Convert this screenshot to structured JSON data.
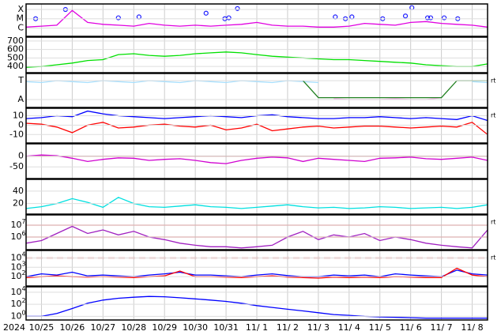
{
  "year": "2024",
  "x_axis": {
    "xlim": [
      -0.5,
      14.5
    ],
    "xticks": [
      {
        "value": 0,
        "label": "10/25"
      },
      {
        "value": 1,
        "label": "10/26"
      },
      {
        "value": 2,
        "label": "10/27"
      },
      {
        "value": 3,
        "label": "10/28"
      },
      {
        "value": 4,
        "label": "10/29"
      },
      {
        "value": 5,
        "label": "10/30"
      },
      {
        "value": 6,
        "label": "10/31"
      },
      {
        "value": 7,
        "label": "11/ 1"
      },
      {
        "value": 8,
        "label": "11/ 2"
      },
      {
        "value": 9,
        "label": "11/ 3"
      },
      {
        "value": 10,
        "label": "11/ 4"
      },
      {
        "value": 11,
        "label": "11/ 5"
      },
      {
        "value": 12,
        "label": "11/ 6"
      },
      {
        "value": 13,
        "label": "11/ 7"
      },
      {
        "value": 14,
        "label": "11/ 8"
      }
    ],
    "x": [
      -0.5,
      0,
      0.5,
      1,
      1.5,
      2,
      2.5,
      3,
      3.5,
      4,
      4.5,
      5,
      5.5,
      6,
      6.5,
      7,
      7.5,
      8,
      8.5,
      9,
      9.5,
      10,
      10.5,
      11,
      11.5,
      12,
      12.5,
      13,
      13.5,
      14,
      14.5
    ]
  },
  "chart_data": [
    {
      "type": "line",
      "ylim": [
        0.1,
        3.6
      ],
      "yticks": [
        {
          "value": 3,
          "label": "X"
        },
        {
          "value": 2,
          "label": "M"
        },
        {
          "value": 1,
          "label": "C"
        }
      ],
      "series": [
        {
          "color": "#e000e0",
          "values": [
            1.1,
            1.2,
            1.3,
            2.9,
            1.6,
            1.4,
            1.3,
            1.2,
            1.5,
            1.3,
            1.2,
            1.3,
            1.2,
            1.3,
            1.4,
            1.6,
            1.3,
            1.2,
            1.2,
            1.1,
            1.1,
            1.2,
            1.5,
            1.4,
            1.3,
            1.6,
            1.7,
            1.5,
            1.4,
            1.3,
            1.1
          ]
        },
        {
          "color": "#2020ff",
          "mode": "markers",
          "x": [
            -0.19,
            0.78,
            2.5,
            3.17,
            5.35,
            5.96,
            6.09,
            6.37,
            9.55,
            9.88,
            10.09,
            11.09,
            11.83,
            12.04,
            12.55,
            12.65,
            13.09,
            13.53
          ],
          "values": [
            2.0,
            3.0,
            2.1,
            2.2,
            2.6,
            2.0,
            2.1,
            3.1,
            2.2,
            2.0,
            2.2,
            2.0,
            2.3,
            3.2,
            2.1,
            2.1,
            2.1,
            2.0
          ]
        }
      ]
    },
    {
      "type": "line",
      "ylim": [
        327,
        745
      ],
      "yticks": [
        700,
        600,
        500,
        400
      ],
      "series": [
        {
          "color": "#00e000",
          "values": [
            390,
            400,
            420,
            440,
            470,
            480,
            540,
            550,
            530,
            520,
            530,
            550,
            560,
            570,
            560,
            540,
            520,
            510,
            500,
            490,
            480,
            480,
            470,
            460,
            450,
            440,
            420,
            410,
            400,
            400,
            430
          ]
        }
      ]
    },
    {
      "type": "line",
      "ylim": [
        -0.42,
        1.38
      ],
      "yticks": [
        {
          "value": 1,
          "label": "T"
        },
        {
          "value": 0,
          "label": "A"
        }
      ],
      "side_label": "rt",
      "series": [
        {
          "color": "#a8e0ff",
          "values": [
            0.95,
            0.9,
            1,
            0.95,
            0.9,
            1,
            0.95,
            0.9,
            1,
            0.95,
            0.9,
            1,
            0.95,
            0.9,
            1,
            0.95,
            0.9,
            1,
            0.95,
            0.9,
            null,
            null,
            null,
            null,
            null,
            null,
            null,
            null,
            null,
            0.95,
            0.9
          ]
        },
        {
          "color": "#ffb0f0",
          "values": [
            null,
            null,
            null,
            null,
            null,
            null,
            null,
            null,
            null,
            null,
            null,
            null,
            null,
            null,
            null,
            null,
            null,
            null,
            null,
            null,
            0.05,
            0,
            0,
            0,
            0.05,
            0,
            0,
            0.1,
            null,
            null,
            null
          ]
        },
        {
          "color": "#208020",
          "values": [
            null,
            null,
            null,
            null,
            null,
            null,
            null,
            null,
            null,
            null,
            null,
            null,
            null,
            null,
            null,
            null,
            null,
            null,
            1,
            0.1,
            0.1,
            0.1,
            0.1,
            0.1,
            0.1,
            0.1,
            0.1,
            0.1,
            1,
            1,
            1
          ]
        }
      ]
    },
    {
      "type": "line",
      "ylim": [
        -19,
        18
      ],
      "yticks": [
        10,
        0,
        -10
      ],
      "side_label": "rt",
      "series": [
        {
          "color": "#0000ff",
          "values": [
            7,
            8,
            10,
            9,
            15,
            12,
            10,
            9,
            8,
            7,
            8,
            9,
            10,
            9,
            8,
            10,
            11,
            9,
            8,
            7,
            7,
            8,
            8,
            9,
            8,
            7,
            8,
            7,
            6,
            10,
            5
          ]
        },
        {
          "color": "#ff0000",
          "values": [
            2,
            1,
            -2,
            -8,
            0,
            3,
            -3,
            -2,
            0,
            1,
            -1,
            -2,
            0,
            -5,
            -3,
            1,
            -6,
            -4,
            -2,
            -1,
            -3,
            -2,
            -1,
            -1,
            -2,
            -3,
            -2,
            -1,
            -2,
            3,
            -10
          ]
        }
      ]
    },
    {
      "type": "line",
      "ylim": [
        -104,
        57
      ],
      "yticks": [
        0,
        -50
      ],
      "reference_lines": [
        {
          "value": 0,
          "color": "#a00000"
        }
      ],
      "series": [
        {
          "color": "#d000d0",
          "values": [
            0,
            5,
            2,
            -10,
            -25,
            -15,
            -8,
            -10,
            -20,
            -15,
            -12,
            -20,
            -30,
            -35,
            -20,
            -10,
            -5,
            -8,
            -25,
            -10,
            -15,
            -20,
            -25,
            -10,
            -8,
            -5,
            -12,
            -15,
            -10,
            -5,
            -20
          ]
        }
      ]
    },
    {
      "type": "line",
      "ylim": [
        3,
        59
      ],
      "yticks": [
        40,
        20
      ],
      "series": [
        {
          "color": "#00e0e0",
          "values": [
            12,
            15,
            20,
            28,
            22,
            14,
            30,
            20,
            15,
            14,
            16,
            18,
            15,
            14,
            12,
            14,
            16,
            18,
            15,
            13,
            14,
            12,
            13,
            15,
            14,
            12,
            13,
            14,
            12,
            14,
            18
          ]
        }
      ]
    },
    {
      "type": "line",
      "log": true,
      "ylim": [
        85000,
        74000000
      ],
      "yticks": [
        {
          "value": 10000000,
          "label": "10",
          "exponent": "7"
        },
        {
          "value": 1000000,
          "label": "10",
          "exponent": "6"
        }
      ],
      "side_label": "rt",
      "reference_lines": [
        {
          "value": 10000000,
          "color": "#e00000"
        },
        {
          "value": 1000000,
          "color": "#e00000"
        }
      ],
      "series": [
        {
          "color": "#a020c0",
          "values": [
            300000,
            500000,
            2000000,
            8000000,
            2000000,
            4000000,
            1500000,
            3000000,
            1000000,
            600000,
            300000,
            200000,
            150000,
            150000,
            120000,
            150000,
            200000,
            1000000,
            3000000,
            600000,
            1500000,
            1000000,
            2000000,
            500000,
            1000000,
            600000,
            300000,
            200000,
            150000,
            120000,
            4000000
          ]
        }
      ]
    },
    {
      "type": "line",
      "log": true,
      "ylim": [
        10,
        63000
      ],
      "yticks": [
        {
          "value": 10000,
          "label": "10",
          "exponent": "4"
        },
        {
          "value": 1000,
          "label": "10",
          "exponent": "3"
        },
        {
          "value": 100,
          "label": "10",
          "exponent": "2"
        }
      ],
      "side_label": "rt",
      "reference_lines": [
        {
          "value": 10000,
          "color": "#e00000",
          "dash": true
        }
      ],
      "series": [
        {
          "color": "#0000ff",
          "values": [
            100,
            200,
            150,
            300,
            120,
            150,
            120,
            100,
            150,
            200,
            300,
            150,
            150,
            120,
            100,
            150,
            200,
            130,
            100,
            100,
            150,
            120,
            150,
            100,
            200,
            150,
            120,
            100,
            500,
            200,
            150
          ]
        },
        {
          "color": "#ff0000",
          "values": [
            80,
            100,
            120,
            100,
            90,
            100,
            90,
            80,
            100,
            120,
            400,
            100,
            100,
            90,
            80,
            100,
            120,
            90,
            80,
            70,
            90,
            80,
            90,
            80,
            100,
            90,
            80,
            80,
            800,
            150,
            100
          ]
        }
      ]
    },
    {
      "type": "line",
      "log": true,
      "ylim": [
        0.25,
        80000
      ],
      "yticks": [
        {
          "value": 10000,
          "label": "10",
          "exponent": "4"
        },
        {
          "value": 100,
          "label": "10",
          "exponent": "2"
        },
        {
          "value": 1,
          "label": "10",
          "exponent": "0"
        }
      ],
      "series": [
        {
          "color": "#0000ff",
          "values": [
            1,
            1,
            3,
            20,
            150,
            500,
            1000,
            1500,
            2000,
            1800,
            1200,
            800,
            500,
            300,
            150,
            60,
            30,
            15,
            8,
            4,
            2,
            1.5,
            1,
            0.8,
            0.7,
            0.6,
            0.5,
            0.5,
            0.5,
            0.5,
            0.5
          ]
        }
      ]
    }
  ]
}
